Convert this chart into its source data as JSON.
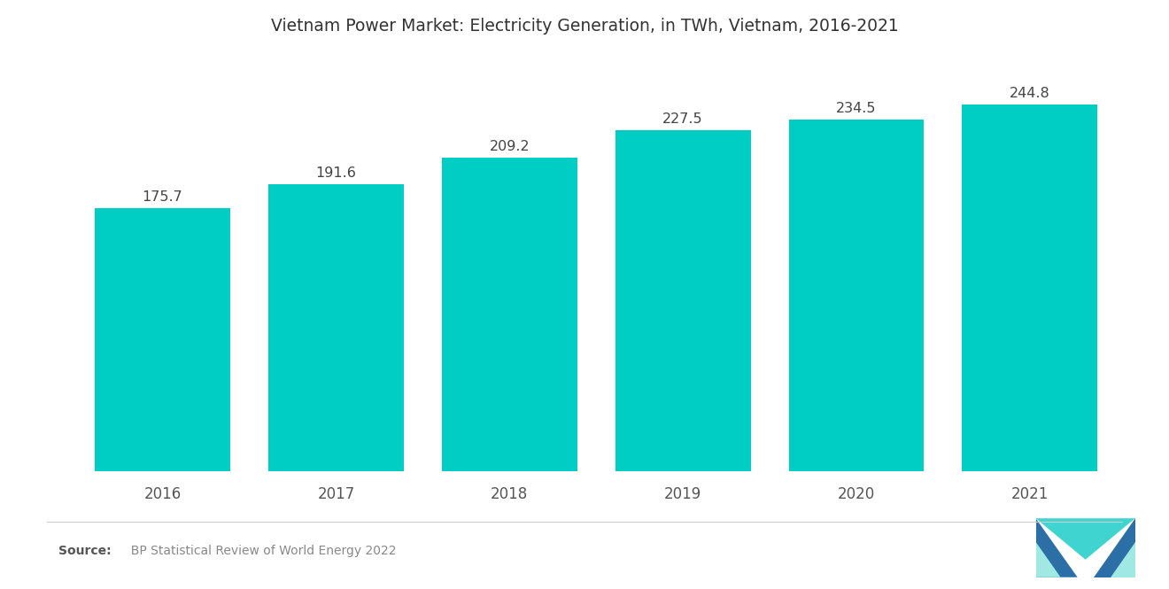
{
  "title": "Vietnam Power Market: Electricity Generation, in TWh, Vietnam, 2016-2021",
  "categories": [
    "2016",
    "2017",
    "2018",
    "2019",
    "2020",
    "2021"
  ],
  "values": [
    175.7,
    191.6,
    209.2,
    227.5,
    234.5,
    244.8
  ],
  "bar_color": "#00CEC4",
  "background_color": "#ffffff",
  "title_fontsize": 13.5,
  "label_fontsize": 11.5,
  "source_bold": "Source:",
  "source_normal": "  BP Statistical Review of World Energy 2022",
  "ylim": [
    0,
    275
  ],
  "bar_width": 0.78,
  "logo_blue": "#2c6fa6",
  "logo_teal": "#40d4d0",
  "logo_light": "#a0e8e4"
}
